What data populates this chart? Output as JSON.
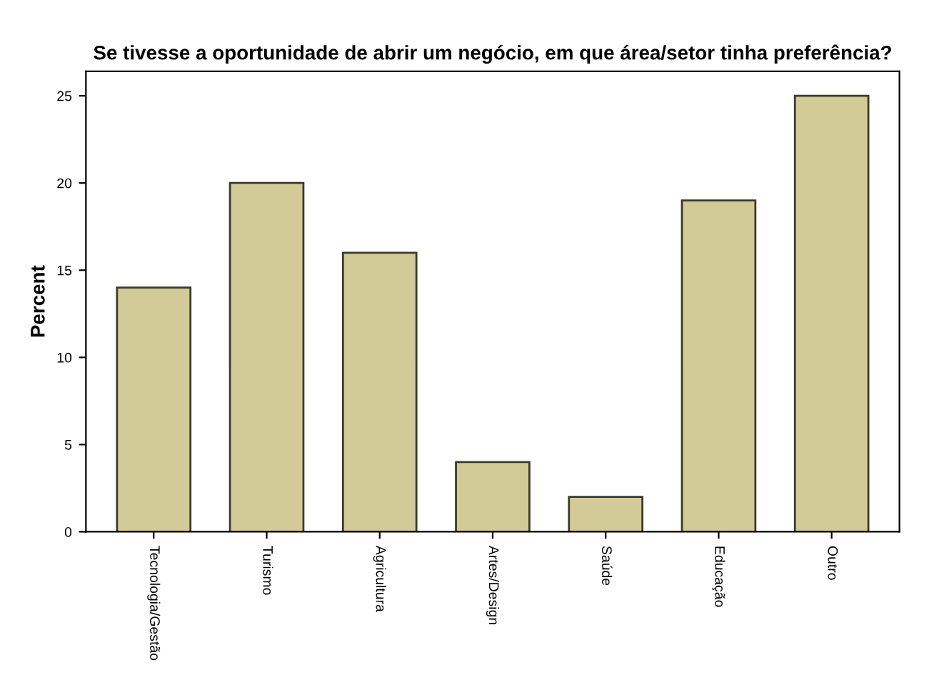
{
  "chart_data": {
    "type": "bar",
    "title": "Se tivesse a oportunidade de abrir um negócio, em que área/setor tinha preferência?",
    "ylabel": "Percent",
    "categories": [
      "Tecnologia/Gestão",
      "Turismo",
      "Agricultura",
      "Artes/Design",
      "Saúde",
      "Educação",
      "Outro"
    ],
    "values": [
      14,
      20,
      16,
      4,
      2,
      19,
      25
    ],
    "color": "#d3cb97",
    "ylim": [
      0,
      26.4
    ],
    "yticks": [
      0,
      5,
      10,
      15,
      20,
      25
    ],
    "grid": false,
    "legend": false
  }
}
